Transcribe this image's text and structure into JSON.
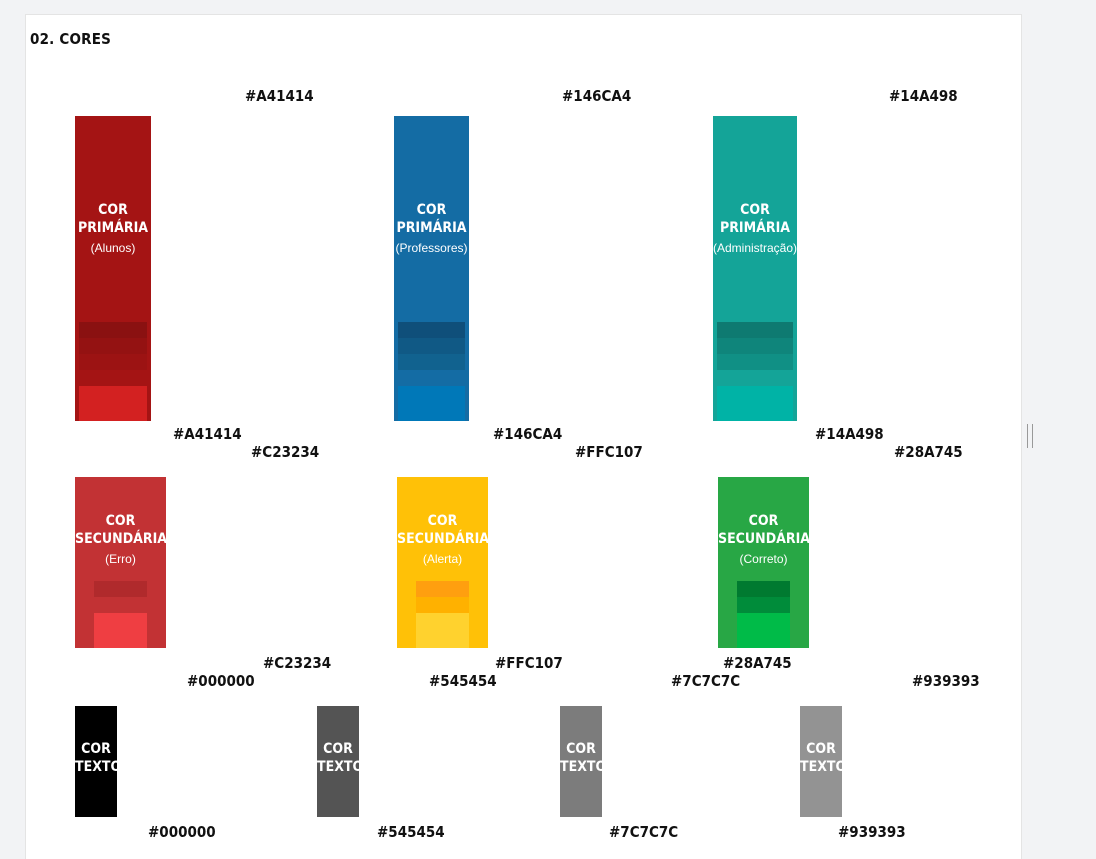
{
  "section_title": "02. CORES",
  "primary": [
    {
      "hex": "#A41414",
      "line1": "COR",
      "line2": "PRIMÁRIA",
      "sub": "(Alunos)",
      "color": "#A41414",
      "shades": [
        "#8a1111",
        "#941212",
        "#9c1313",
        "#a41414",
        "#d32121"
      ]
    },
    {
      "hex": "#146CA4",
      "line1": "COR",
      "line2": "PRIMÁRIA",
      "sub": "(Professores)",
      "color": "#146CA4",
      "shades": [
        "#0f4f7a",
        "#105985",
        "#11628f",
        "#146ca4",
        "#0078b8"
      ]
    },
    {
      "hex": "#14A498",
      "line1": "COR",
      "line2": "PRIMÁRIA",
      "sub": "(Administração)",
      "color": "#14A498",
      "shades": [
        "#0e7a71",
        "#0f857b",
        "#109085",
        "#14a498",
        "#00b3a6"
      ]
    }
  ],
  "secondary": [
    {
      "hex": "#C23234",
      "line1": "COR",
      "line2": "SECUNDÁRIA",
      "sub": "(Erro)",
      "color": "#C23234",
      "shades": [
        "#b02a2c",
        "#c23234",
        "#ef3e42"
      ]
    },
    {
      "hex": "#FFC107",
      "line1": "COR",
      "line2": "SECUNDÁRIA",
      "sub": "(Alerta)",
      "color": "#FFC107",
      "shades": [
        "#ff9f0f",
        "#ffb100",
        "#ffd22e"
      ]
    },
    {
      "hex": "#28A745",
      "line1": "COR",
      "line2": "SECUNDÁRIA",
      "sub": "(Correto)",
      "color": "#28A745",
      "shades": [
        "#007a30",
        "#008c3a",
        "#00bb48"
      ]
    }
  ],
  "text": [
    {
      "hex": "#000000",
      "line1": "COR",
      "line2": "TEXTO",
      "color": "#000000"
    },
    {
      "hex": "#545454",
      "line1": "COR",
      "line2": "TEXTO",
      "color": "#545454"
    },
    {
      "hex": "#7C7C7C",
      "line1": "COR",
      "line2": "TEXTO",
      "color": "#7C7C7C"
    },
    {
      "hex": "#939393",
      "line1": "COR",
      "line2": "TEXTO",
      "color": "#939393"
    }
  ]
}
